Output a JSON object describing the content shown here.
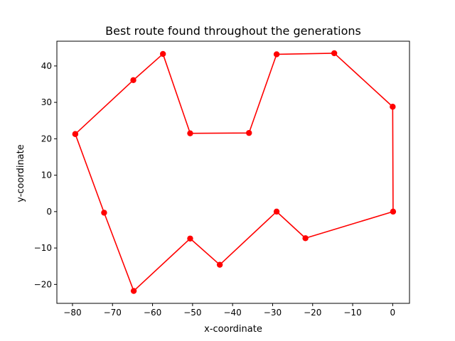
{
  "chart_data": {
    "type": "line",
    "title": "Best route found throughout the generations",
    "xlabel": "x-coordinate",
    "ylabel": "y-coordinate",
    "xlim": [
      -83.9,
      4.2
    ],
    "ylim": [
      -25.2,
      46.8
    ],
    "xticks": [
      -80,
      -70,
      -60,
      -50,
      -40,
      -30,
      -20,
      -10,
      0
    ],
    "yticks": [
      -20,
      -10,
      0,
      10,
      20,
      30,
      40
    ],
    "grid": false,
    "series": [
      {
        "color": "#ff0000",
        "marker": "circle",
        "points": [
          {
            "x": -79.3,
            "y": 21.3
          },
          {
            "x": -64.8,
            "y": 36.1
          },
          {
            "x": -57.4,
            "y": 43.3
          },
          {
            "x": -50.6,
            "y": 21.5
          },
          {
            "x": -35.9,
            "y": 21.6
          },
          {
            "x": -29.0,
            "y": 43.2
          },
          {
            "x": -14.6,
            "y": 43.5
          },
          {
            "x": 0.0,
            "y": 28.8
          },
          {
            "x": 0.1,
            "y": 0.0
          },
          {
            "x": -21.8,
            "y": -7.3
          },
          {
            "x": -29.0,
            "y": 0.0
          },
          {
            "x": -43.2,
            "y": -14.6
          },
          {
            "x": -50.6,
            "y": -7.4
          },
          {
            "x": -64.7,
            "y": -21.8
          },
          {
            "x": -72.1,
            "y": -0.3
          },
          {
            "x": -79.3,
            "y": 21.3
          }
        ]
      }
    ]
  }
}
